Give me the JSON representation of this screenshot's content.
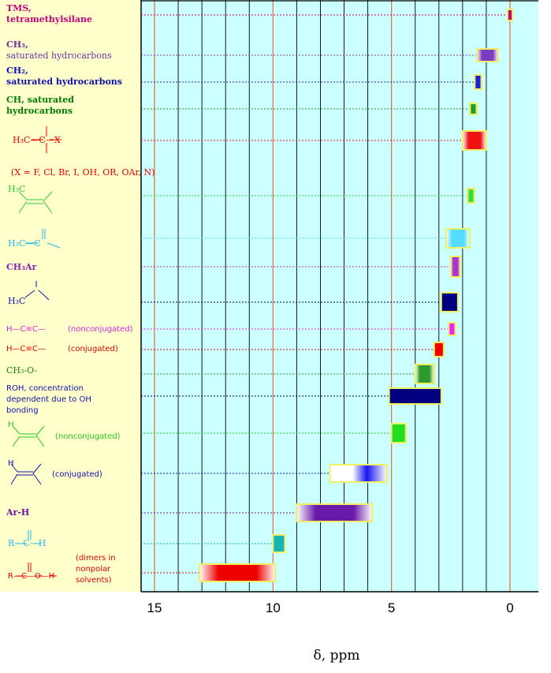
{
  "chart_data": {
    "type": "range-bar",
    "xlabel": "δ, ppm",
    "x_reversed": true,
    "xlim": [
      15.5,
      -0.2
    ],
    "xticks": [
      15,
      10,
      5,
      0
    ],
    "xtick_labels": [
      "15",
      "10",
      "5",
      "0"
    ],
    "grid": true,
    "items": [
      {
        "label": "TMS,",
        "label2": "tetramethylsilane",
        "range": [
          0.1,
          -0.1
        ],
        "color": "#cc0077",
        "style": "solid",
        "label_color": "#cc0077"
      },
      {
        "label": "CH3,",
        "label2": "saturated hydrocarbons",
        "range": [
          1.4,
          0.5
        ],
        "color": "#7a3cc0",
        "style": "fade",
        "label_color": "#7030a0"
      },
      {
        "label": "CH2,",
        "label2": "saturated hydrocarbons",
        "range": [
          1.5,
          1.2
        ],
        "color": "#2020d0",
        "style": "fade",
        "label_color": "#1010b0"
      },
      {
        "label": "CH, saturated",
        "label2": "hydrocarbons",
        "range": [
          1.7,
          1.4
        ],
        "color": "#20a020",
        "style": "fade",
        "label_color": "#008000"
      },
      {
        "label": "H3C—C—X",
        "label2": "",
        "range": [
          2.0,
          1.0
        ],
        "color": "#ee1111",
        "style": "fade",
        "label_color": "#ee0000"
      },
      {
        "label": "(X = F, Cl, Br, I, OH, OR, OAr, N)",
        "label2": "",
        "range": null,
        "color": "",
        "style": "none",
        "label_color": "#ee0000"
      },
      {
        "label": "H3C alkene",
        "label2": "",
        "range": [
          1.8,
          1.5
        ],
        "color": "#33dd33",
        "style": "fade",
        "label_color": "#33cc33"
      },
      {
        "label": "H3C—C=O",
        "label2": "",
        "range": [
          2.7,
          1.7
        ],
        "color": "#55ddff",
        "style": "fade",
        "label_color": "#22bbee"
      },
      {
        "label": "CH3Ar",
        "label2": "",
        "range": [
          2.5,
          2.1
        ],
        "color": "#aa33cc",
        "style": "fade",
        "label_color": "#9020b0"
      },
      {
        "label": "H3C—N",
        "label2": "",
        "range": [
          2.9,
          2.2
        ],
        "color": "#000080",
        "style": "solid",
        "label_color": "#1010b0"
      },
      {
        "label": "H—C≡C—",
        "label2": "(nonconjugated)",
        "range": [
          2.6,
          2.3
        ],
        "color": "#ee22ee",
        "style": "fade",
        "label_color": "#dd22dd"
      },
      {
        "label": "H—C≡C—",
        "label2": "(conjugated)",
        "range": [
          3.2,
          2.8
        ],
        "color": "#ee0000",
        "style": "solid",
        "label_color": "#ee0000"
      },
      {
        "label": "CH3-O-",
        "label2": "",
        "range": [
          4.0,
          3.2
        ],
        "color": "#2a9a2a",
        "style": "fade",
        "label_color": "#1a8a1a"
      },
      {
        "label": "ROH, concentration",
        "label2": "dependent due to OH",
        "label3": "bonding",
        "range": [
          5.1,
          2.9
        ],
        "color": "#000080",
        "style": "solid",
        "label_color": "#1010b0"
      },
      {
        "label": "H alkene",
        "label2": "(nonconjugated)",
        "range": [
          5.0,
          4.4
        ],
        "color": "#22dd22",
        "style": "solid",
        "label_color": "#22cc22"
      },
      {
        "label": "H alkene",
        "label2": "(conjugated)",
        "range": [
          7.6,
          5.2
        ],
        "color": "#1515ee",
        "style": "fadeleft",
        "label_color": "#1010b0"
      },
      {
        "label": "Ar-H",
        "label2": "",
        "range": [
          9.0,
          5.8
        ],
        "color": "#6a1aa8",
        "style": "fade",
        "label_color": "#7010a0"
      },
      {
        "label": "R—C(=O)—H",
        "label2": "",
        "range": [
          10.0,
          9.5
        ],
        "color": "#19b3b3",
        "style": "solid",
        "label_color": "#22bbee"
      },
      {
        "label": "R—C(=O)—O—H",
        "label2": "(dimers in",
        "label3": "nonpolar",
        "label4": "solvents)",
        "range": [
          13.1,
          9.9
        ],
        "color": "#ee0000",
        "style": "fade",
        "label_color": "#ee0000"
      }
    ]
  }
}
